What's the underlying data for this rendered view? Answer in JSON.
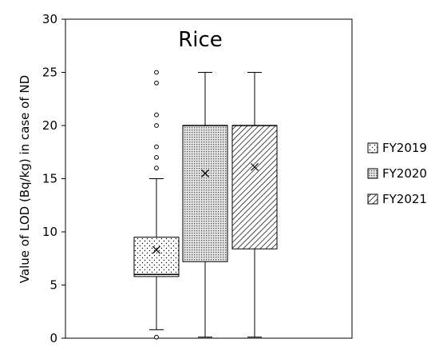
{
  "chart_data": {
    "type": "box",
    "title": "Rice",
    "ylabel": "Value of LOD (Bq/kg) in case of ND",
    "xlabel": "",
    "ylim": [
      0,
      30
    ],
    "yticks": [
      "0",
      "5",
      "10",
      "15",
      "20",
      "25",
      "30"
    ],
    "grid": false,
    "legend_position": "right",
    "series": [
      {
        "name": "FY2019",
        "pattern": "dots",
        "whisker_low": 0.8,
        "q1": 5.8,
        "median": 6.0,
        "q3": 9.5,
        "whisker_high": 15.0,
        "mean": 8.3,
        "outliers": [
          0.1,
          16,
          17,
          18,
          20,
          21,
          24,
          25
        ]
      },
      {
        "name": "FY2020",
        "pattern": "dense-dots",
        "whisker_low": 0.1,
        "q1": 7.2,
        "median": 20.0,
        "q3": 20.0,
        "whisker_high": 25.0,
        "mean": 15.5,
        "outliers": []
      },
      {
        "name": "FY2021",
        "pattern": "diagonal-hatch",
        "whisker_low": 0.1,
        "q1": 8.4,
        "median": 20.0,
        "q3": 20.0,
        "whisker_high": 25.0,
        "mean": 16.1,
        "outliers": []
      }
    ]
  }
}
